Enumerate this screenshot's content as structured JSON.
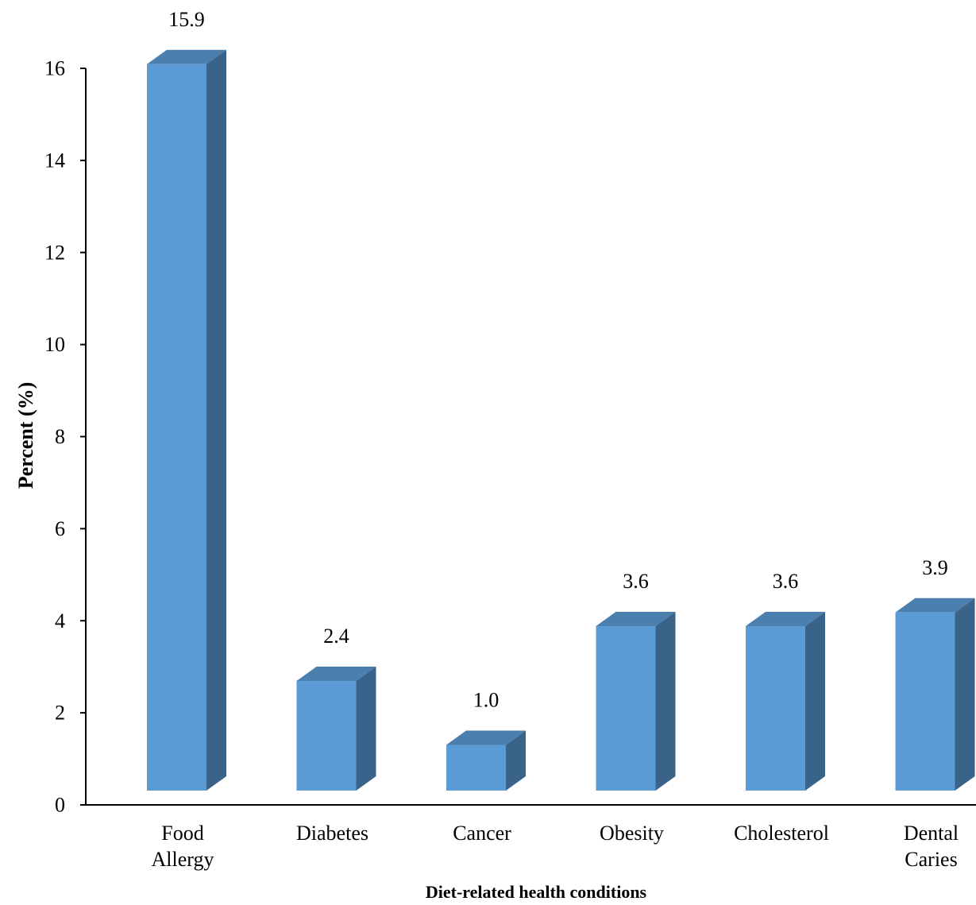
{
  "chart_data": {
    "type": "bar",
    "style": "3d-column",
    "categories": [
      [
        "Food",
        "Allergy"
      ],
      [
        "Diabetes"
      ],
      [
        "Cancer"
      ],
      [
        "Obesity"
      ],
      [
        "Cholesterol"
      ],
      [
        "Dental",
        "Caries"
      ]
    ],
    "values": [
      15.9,
      2.4,
      1.0,
      3.6,
      3.6,
      3.9
    ],
    "data_labels": [
      "15.9",
      "2.4",
      "1.0",
      "3.6",
      "3.6",
      "3.9"
    ],
    "xlabel": "Diet-related health conditions",
    "ylabel": "Percent (%)",
    "ylim": [
      0,
      16
    ],
    "yticks": [
      0,
      2,
      4,
      6,
      8,
      10,
      12,
      14,
      16
    ],
    "grid": false,
    "legend": "none",
    "colors": {
      "front": "#5b9bd5",
      "side": "#3a6389",
      "top": "#4a7fae",
      "axis": "#000000"
    }
  }
}
